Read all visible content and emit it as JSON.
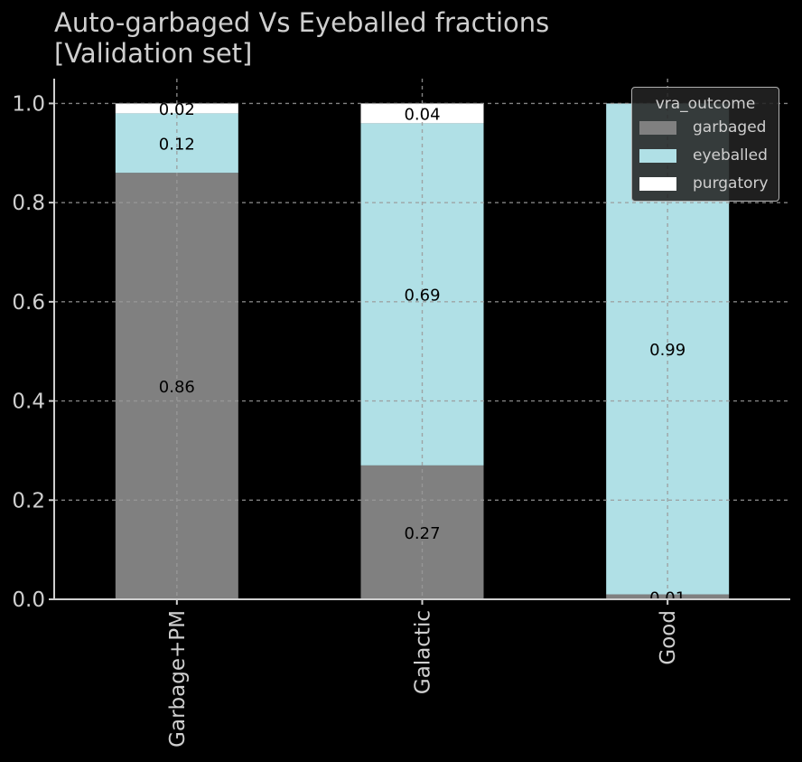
{
  "title_lines": [
    "Auto-garbaged Vs Eyeballed fractions",
    "[Validation set]"
  ],
  "chart_data": {
    "type": "bar",
    "stacked": true,
    "title": "Auto-garbaged Vs Eyeballed fractions\n[Validation set]",
    "xlabel": "",
    "ylabel": "",
    "categories": [
      "Garbage+PM",
      "Galactic",
      "Good"
    ],
    "series": [
      {
        "name": "garbaged",
        "color": "#808080",
        "values": [
          0.86,
          0.27,
          0.01
        ],
        "labels": [
          "0.86",
          "0.27",
          "0.01"
        ]
      },
      {
        "name": "eyeballed",
        "color": "#b0e0e6",
        "values": [
          0.12,
          0.69,
          0.99
        ],
        "labels": [
          "0.12",
          "0.69",
          "0.99"
        ]
      },
      {
        "name": "purgatory",
        "color": "#ffffff",
        "values": [
          0.02,
          0.04,
          0.0
        ],
        "labels": [
          "0.02",
          "0.04",
          ""
        ]
      }
    ],
    "ylim": [
      0,
      1.05
    ],
    "yticks": [
      "0.0",
      "0.2",
      "0.4",
      "0.6",
      "0.8",
      "1.0"
    ],
    "grid": true,
    "legend": {
      "title": "vra_outcome",
      "placement": "top-right"
    }
  },
  "colors": {
    "background": "#000000",
    "text": "#cfcfcf",
    "axis": "#cfcfcf",
    "grid": "#9a9a9a"
  }
}
